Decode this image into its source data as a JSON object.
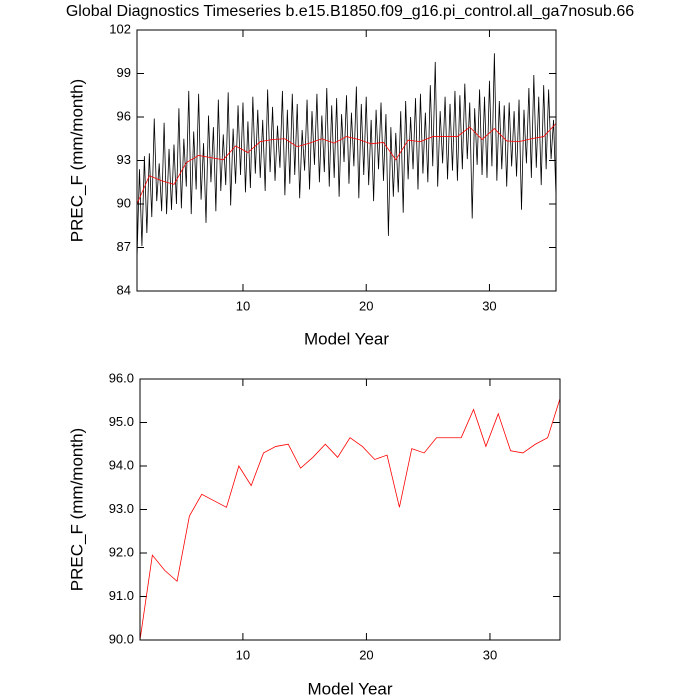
{
  "chart_data": [
    {
      "type": "line",
      "title": "Global Diagnostics Timeseries b.e15.B1850.f09_g16.pi_control.all_ga7nosub.66",
      "x_label": "Model Year",
      "y_label": "PREC_F (mm/month)",
      "xlim": [
        1.4,
        35.4
      ],
      "xticks": [
        10,
        20,
        30
      ],
      "ylim": [
        84,
        102
      ],
      "yticks": [
        84,
        87,
        90,
        93,
        96,
        99,
        102
      ],
      "series": [
        {
          "color": "#000000",
          "x": [
            1.4,
            1.6,
            1.8,
            2.0,
            2.2,
            2.4,
            2.6,
            2.8,
            3.0,
            3.2,
            3.4,
            3.6,
            3.8,
            4.0,
            4.2,
            4.4,
            4.6,
            4.8,
            5.0,
            5.2,
            5.4,
            5.6,
            5.8,
            6.0,
            6.2,
            6.4,
            6.6,
            6.8,
            7.0,
            7.2,
            7.4,
            7.6,
            7.8,
            8.0,
            8.2,
            8.4,
            8.6,
            8.8,
            9.0,
            9.2,
            9.4,
            9.6,
            9.8,
            10.0,
            10.2,
            10.4,
            10.6,
            10.8,
            11.0,
            11.2,
            11.4,
            11.6,
            11.8,
            12.0,
            12.2,
            12.4,
            12.6,
            12.8,
            13.0,
            13.2,
            13.4,
            13.6,
            13.8,
            14.0,
            14.2,
            14.4,
            14.6,
            14.8,
            15.0,
            15.2,
            15.4,
            15.6,
            15.8,
            16.0,
            16.2,
            16.4,
            16.6,
            16.8,
            17.0,
            17.2,
            17.4,
            17.6,
            17.8,
            18.0,
            18.2,
            18.4,
            18.6,
            18.8,
            19.0,
            19.2,
            19.4,
            19.6,
            19.8,
            20.0,
            20.2,
            20.4,
            20.6,
            20.8,
            21.0,
            21.2,
            21.4,
            21.6,
            21.8,
            22.0,
            22.2,
            22.4,
            22.6,
            22.8,
            23.0,
            23.2,
            23.4,
            23.6,
            23.8,
            24.0,
            24.2,
            24.4,
            24.6,
            24.8,
            25.0,
            25.2,
            25.4,
            25.6,
            25.8,
            26.0,
            26.2,
            26.4,
            26.6,
            26.8,
            27.0,
            27.2,
            27.4,
            27.6,
            27.8,
            28.0,
            28.2,
            28.4,
            28.6,
            28.8,
            29.0,
            29.2,
            29.4,
            29.6,
            29.8,
            30.0,
            30.2,
            30.4,
            30.6,
            30.8,
            31.0,
            31.2,
            31.4,
            31.6,
            31.8,
            32.0,
            32.2,
            32.4,
            32.6,
            32.8,
            33.0,
            33.2,
            33.4,
            33.6,
            33.8,
            34.0,
            34.2,
            34.4,
            34.6,
            34.8,
            35.0,
            35.2,
            35.4
          ],
          "values": [
            86.2,
            92.4,
            87.1,
            93.3,
            88.0,
            93.5,
            89.1,
            95.9,
            90.2,
            92.8,
            89.5,
            95.6,
            89.3,
            93.8,
            89.6,
            94.1,
            90.0,
            96.6,
            89.7,
            94.5,
            91.2,
            97.8,
            89.3,
            95.0,
            91.0,
            97.6,
            90.3,
            94.2,
            88.7,
            96.1,
            91.5,
            95.3,
            89.5,
            97.2,
            90.9,
            94.8,
            91.3,
            97.7,
            89.9,
            95.2,
            91.4,
            96.8,
            92.0,
            97.0,
            90.8,
            95.7,
            91.1,
            97.4,
            92.1,
            96.5,
            91.8,
            95.8,
            90.9,
            97.9,
            92.2,
            96.7,
            91.6,
            95.4,
            92.5,
            97.8,
            90.6,
            96.5,
            91.4,
            97.6,
            92.0,
            96.9,
            90.4,
            95.1,
            92.3,
            97.2,
            91.0,
            96.4,
            92.7,
            97.6,
            91.5,
            96.1,
            92.2,
            98.0,
            91.2,
            96.8,
            91.8,
            97.3,
            90.5,
            96.2,
            92.9,
            97.5,
            91.4,
            96.3,
            92.6,
            98.1,
            90.4,
            96.9,
            92.0,
            97.4,
            91.3,
            95.8,
            90.2,
            96.5,
            92.4,
            97.0,
            91.6,
            96.2,
            87.8,
            95.3,
            90.5,
            94.9,
            90.8,
            96.4,
            89.4,
            97.1,
            91.7,
            96.0,
            92.4,
            97.3,
            91.0,
            97.6,
            92.1,
            96.3,
            91.5,
            98.2,
            92.6,
            99.8,
            91.2,
            96.4,
            92.8,
            97.4,
            91.7,
            96.9,
            92.3,
            97.8,
            91.6,
            97.5,
            92.4,
            98.3,
            93.1,
            97.0,
            89.0,
            96.6,
            92.7,
            97.9,
            92.0,
            97.4,
            91.8,
            98.5,
            92.6,
            100.4,
            91.6,
            97.1,
            92.4,
            96.8,
            91.2,
            97.0,
            92.6,
            96.4,
            91.9,
            97.2,
            89.6,
            96.5,
            92.8,
            98.0,
            91.8,
            98.9,
            92.5,
            97.4,
            91.3,
            98.2,
            92.4,
            97.9,
            93.1,
            95.8,
            90.5
          ]
        },
        {
          "color": "#ff0000",
          "x": [
            1.4,
            2.4,
            3.4,
            4.4,
            5.4,
            6.4,
            7.4,
            8.4,
            9.4,
            10.4,
            11.4,
            12.4,
            13.4,
            14.4,
            15.4,
            16.4,
            17.4,
            18.4,
            19.4,
            20.4,
            21.4,
            22.4,
            23.4,
            24.4,
            25.4,
            26.4,
            27.4,
            28.4,
            29.4,
            30.4,
            31.4,
            32.4,
            33.4,
            34.4,
            35.4
          ],
          "values": [
            90.0,
            91.95,
            91.6,
            91.35,
            92.85,
            93.35,
            93.2,
            93.05,
            94.0,
            93.55,
            94.3,
            94.45,
            94.5,
            93.95,
            94.2,
            94.5,
            94.2,
            94.65,
            94.45,
            94.15,
            94.25,
            93.05,
            94.4,
            94.3,
            94.65,
            94.65,
            94.65,
            95.3,
            94.45,
            95.2,
            94.35,
            94.3,
            94.5,
            94.65,
            95.55
          ]
        }
      ]
    },
    {
      "type": "line",
      "x_label": "Model Year",
      "y_label": "PREC_F (mm/month)",
      "xlim": [
        1.67,
        35.67
      ],
      "xticks": [
        10,
        20,
        30
      ],
      "ylim": [
        90,
        96
      ],
      "yticks": [
        {
          "value": 90,
          "label": "90.0"
        },
        {
          "value": 91,
          "label": "91.0"
        },
        {
          "value": 92,
          "label": "92.0"
        },
        {
          "value": 93,
          "label": "93.0"
        },
        {
          "value": 94,
          "label": "94.0"
        },
        {
          "value": 95,
          "label": "95.0"
        },
        {
          "value": 96,
          "label": "96.0"
        }
      ],
      "series": [
        {
          "color": "#ff0000",
          "x": [
            1.67,
            2.67,
            3.67,
            4.67,
            5.67,
            6.67,
            7.67,
            8.67,
            9.67,
            10.67,
            11.67,
            12.67,
            13.67,
            14.67,
            15.67,
            16.67,
            17.67,
            18.67,
            19.67,
            20.67,
            21.67,
            22.67,
            23.67,
            24.67,
            25.67,
            26.67,
            27.67,
            28.67,
            29.67,
            30.67,
            31.67,
            32.67,
            33.67,
            34.67,
            35.67
          ],
          "values": [
            90.0,
            91.95,
            91.6,
            91.35,
            92.85,
            93.35,
            93.2,
            93.05,
            94.0,
            93.55,
            94.3,
            94.45,
            94.5,
            93.95,
            94.2,
            94.5,
            94.2,
            94.65,
            94.45,
            94.15,
            94.25,
            93.05,
            94.4,
            94.3,
            94.65,
            94.65,
            94.65,
            95.3,
            94.45,
            95.2,
            94.35,
            94.3,
            94.5,
            94.65,
            95.55
          ]
        }
      ]
    }
  ]
}
